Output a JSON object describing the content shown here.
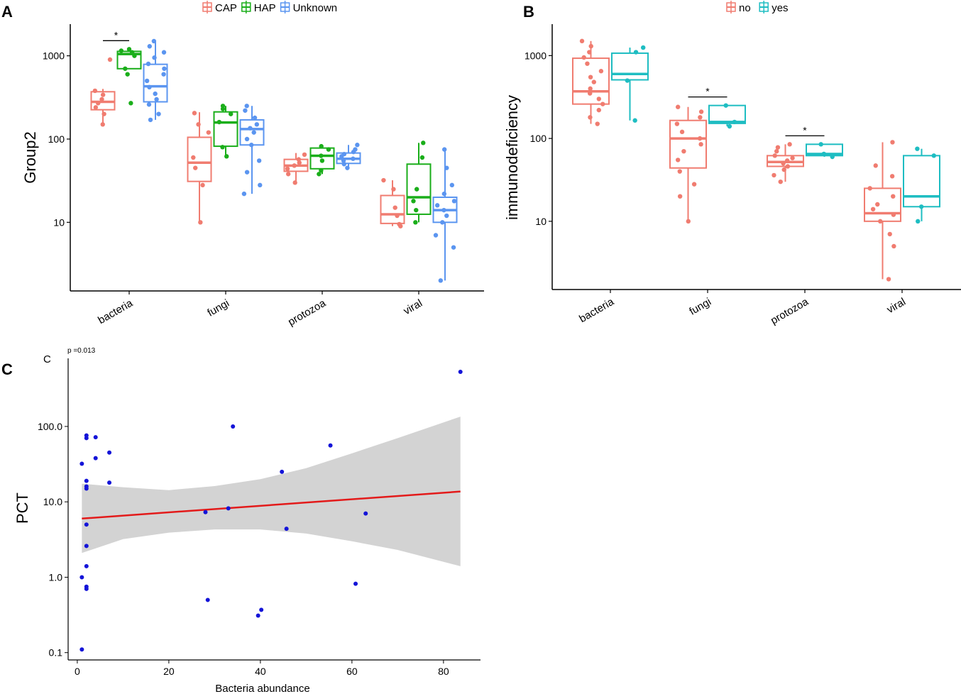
{
  "colors": {
    "CAP": "#F07C70",
    "HAP": "#1AAE1A",
    "Unknown": "#5B95F0",
    "no": "#F07C70",
    "yes": "#1EBDC2",
    "points_c": "#1414D8",
    "fit_line": "#E31A1A",
    "ci_band": "#D3D3D3",
    "axis": "#000000"
  },
  "chart_data": [
    {
      "id": "A",
      "type": "boxplot",
      "panel_label": "A",
      "ylabel": "Group2",
      "yscale": "log10",
      "ylim": [
        1.5,
        2400
      ],
      "yticks": [
        {
          "value": 10,
          "label": "10"
        },
        {
          "value": 100,
          "label": "100"
        },
        {
          "value": 1000,
          "label": "1000"
        }
      ],
      "categories": [
        "bacteria",
        "fungi",
        "protozoa",
        "viral"
      ],
      "legend": [
        {
          "key": "CAP",
          "label": "CAP"
        },
        {
          "key": "HAP",
          "label": "HAP"
        },
        {
          "key": "Unknown",
          "label": "Unknown"
        }
      ],
      "series": [
        {
          "name": "CAP",
          "boxes": [
            {
              "min": 150,
              "q1": 225,
              "median": 280,
              "q3": 370,
              "max": 400,
              "points": [
                150,
                200,
                240,
                270,
                300,
                340,
                380,
                900
              ]
            },
            {
              "min": 10,
              "q1": 31,
              "median": 52,
              "q3": 105,
              "max": 210,
              "points": [
                10,
                28,
                45,
                60,
                120,
                150,
                205
              ]
            },
            {
              "min": 30,
              "q1": 41,
              "median": 48,
              "q3": 57,
              "max": 68,
              "points": [
                30,
                38,
                44,
                48,
                52,
                57,
                65
              ]
            },
            {
              "min": 9,
              "q1": 9.7,
              "median": 12.5,
              "q3": 21,
              "max": 32,
              "points": [
                9,
                9.5,
                12,
                15,
                25,
                32
              ]
            }
          ]
        },
        {
          "name": "HAP",
          "boxes": [
            {
              "min": 700,
              "q1": 700,
              "median": 1050,
              "q3": 1130,
              "max": 1200,
              "points": [
                270,
                600,
                700,
                1000,
                1100,
                1150,
                1200
              ]
            },
            {
              "min": 62,
              "q1": 82,
              "median": 158,
              "q3": 212,
              "max": 250,
              "points": [
                62,
                80,
                160,
                200,
                230,
                250
              ]
            },
            {
              "min": 38,
              "q1": 44,
              "median": 63,
              "q3": 78,
              "max": 82,
              "points": [
                38,
                42,
                55,
                63,
                75,
                82
              ]
            },
            {
              "min": 10,
              "q1": 12.5,
              "median": 20,
              "q3": 50,
              "max": 90,
              "points": [
                10,
                14,
                18,
                25,
                60,
                90
              ]
            }
          ]
        },
        {
          "name": "Unknown",
          "boxes": [
            {
              "min": 170,
              "q1": 280,
              "median": 430,
              "q3": 790,
              "max": 1500,
              "points": [
                170,
                200,
                260,
                300,
                350,
                420,
                500,
                600,
                700,
                800,
                950,
                1100,
                1300,
                1500
              ]
            },
            {
              "min": 22,
              "q1": 85,
              "median": 132,
              "q3": 170,
              "max": 250,
              "points": [
                22,
                28,
                40,
                55,
                85,
                100,
                120,
                135,
                150,
                180,
                220,
                250
              ]
            },
            {
              "min": 45,
              "q1": 51,
              "median": 58,
              "q3": 68,
              "max": 85,
              "points": [
                45,
                50,
                55,
                58,
                62,
                66,
                70,
                75,
                85
              ]
            },
            {
              "min": 2,
              "q1": 10,
              "median": 14,
              "q3": 20,
              "max": 75,
              "points": [
                2,
                5,
                7,
                10,
                12,
                14,
                16,
                18,
                22,
                28,
                45,
                75
              ]
            }
          ]
        }
      ],
      "annotations": [
        {
          "category": "bacteria",
          "pair": [
            "CAP",
            "HAP"
          ],
          "text": "*"
        }
      ]
    },
    {
      "id": "B",
      "type": "boxplot",
      "panel_label": "B",
      "ylabel": "immunodeficiency",
      "yscale": "log10",
      "ylim": [
        1.5,
        2400
      ],
      "yticks": [
        {
          "value": 10,
          "label": "10"
        },
        {
          "value": 100,
          "label": "100"
        },
        {
          "value": 1000,
          "label": "1000"
        }
      ],
      "categories": [
        "bacteria",
        "fungi",
        "protozoa",
        "viral"
      ],
      "legend": [
        {
          "key": "no",
          "label": "no"
        },
        {
          "key": "yes",
          "label": "yes"
        }
      ],
      "series": [
        {
          "name": "no",
          "boxes": [
            {
              "min": 150,
              "q1": 260,
              "median": 370,
              "q3": 930,
              "max": 1500,
              "points": [
                150,
                180,
                220,
                260,
                300,
                350,
                400,
                480,
                550,
                650,
                800,
                950,
                1100,
                1300,
                1500
              ]
            },
            {
              "min": 10,
              "q1": 44,
              "median": 100,
              "q3": 165,
              "max": 240,
              "points": [
                10,
                20,
                28,
                40,
                55,
                70,
                85,
                100,
                120,
                150,
                180,
                210,
                240
              ]
            },
            {
              "min": 30,
              "q1": 46,
              "median": 52,
              "q3": 62,
              "max": 85,
              "points": [
                30,
                36,
                42,
                46,
                50,
                54,
                58,
                62,
                70,
                78,
                85
              ]
            },
            {
              "min": 2,
              "q1": 10,
              "median": 12.5,
              "q3": 25,
              "max": 90,
              "points": [
                2,
                5,
                7,
                10,
                12,
                14,
                16,
                20,
                25,
                35,
                47,
                90
              ]
            }
          ]
        },
        {
          "name": "yes",
          "boxes": [
            {
              "min": 165,
              "q1": 510,
              "median": 600,
              "q3": 1070,
              "max": 1250,
              "points": [
                165,
                500,
                1100,
                1250
              ]
            },
            {
              "min": 140,
              "q1": 152,
              "median": 158,
              "q3": 250,
              "max": 250,
              "points": [
                140,
                158,
                250
              ]
            },
            {
              "min": 60,
              "q1": 62,
              "median": 65,
              "q3": 85,
              "max": 85,
              "points": [
                60,
                65,
                85
              ]
            },
            {
              "min": 10,
              "q1": 15,
              "median": 20,
              "q3": 62,
              "max": 75,
              "points": [
                10,
                15,
                62,
                75
              ]
            }
          ]
        }
      ],
      "annotations": [
        {
          "category": "fungi",
          "pair": [
            "no",
            "yes"
          ],
          "text": "*"
        },
        {
          "category": "protozoa",
          "pair": [
            "no",
            "yes"
          ],
          "text": "*"
        }
      ]
    },
    {
      "id": "C",
      "type": "scatter",
      "panel_label": "C",
      "subtitle": "p =0.013",
      "title_letter": "C",
      "xlabel": "Bacteria abundance",
      "ylabel": "PCT",
      "yscale": "log10",
      "xlim": [
        -2,
        87
      ],
      "ylim": [
        0.08,
        800
      ],
      "xticks": [
        {
          "value": 0,
          "label": "0"
        },
        {
          "value": 20,
          "label": "20"
        },
        {
          "value": 40,
          "label": "40"
        },
        {
          "value": 60,
          "label": "60"
        },
        {
          "value": 80,
          "label": "80"
        }
      ],
      "yticks": [
        {
          "value": 0.1,
          "label": "0.1"
        },
        {
          "value": 1,
          "label": "1.0"
        },
        {
          "value": 10,
          "label": "10.0"
        },
        {
          "value": 100,
          "label": "100.0"
        }
      ],
      "points": [
        {
          "x": 1,
          "y": 0.11
        },
        {
          "x": 1,
          "y": 1.0
        },
        {
          "x": 1,
          "y": 32
        },
        {
          "x": 2,
          "y": 0.7
        },
        {
          "x": 2,
          "y": 0.75
        },
        {
          "x": 2,
          "y": 1.4
        },
        {
          "x": 2,
          "y": 2.6
        },
        {
          "x": 2,
          "y": 5.0
        },
        {
          "x": 2,
          "y": 15
        },
        {
          "x": 2,
          "y": 16
        },
        {
          "x": 2,
          "y": 19
        },
        {
          "x": 2,
          "y": 70
        },
        {
          "x": 2,
          "y": 76
        },
        {
          "x": 4,
          "y": 38
        },
        {
          "x": 4,
          "y": 72
        },
        {
          "x": 7,
          "y": 18
        },
        {
          "x": 7,
          "y": 45
        },
        {
          "x": 28,
          "y": 7.3
        },
        {
          "x": 28.5,
          "y": 0.5
        },
        {
          "x": 33,
          "y": 8.2
        },
        {
          "x": 34,
          "y": 100
        },
        {
          "x": 39.5,
          "y": 0.31
        },
        {
          "x": 40.2,
          "y": 0.37
        },
        {
          "x": 44.7,
          "y": 25
        },
        {
          "x": 45.7,
          "y": 4.4
        },
        {
          "x": 55.3,
          "y": 56
        },
        {
          "x": 60.8,
          "y": 0.82
        },
        {
          "x": 63,
          "y": 7.0
        },
        {
          "x": 83.7,
          "y": 530
        }
      ],
      "fit": {
        "x": [
          1,
          83.7
        ],
        "y": [
          6.0,
          13.7
        ]
      },
      "ci_band": [
        {
          "x": 1,
          "lo": 2.1,
          "hi": 17.4
        },
        {
          "x": 10,
          "lo": 3.2,
          "hi": 15.6
        },
        {
          "x": 20,
          "lo": 3.9,
          "hi": 14.3
        },
        {
          "x": 30,
          "lo": 4.3,
          "hi": 16.2
        },
        {
          "x": 40,
          "lo": 4.3,
          "hi": 20
        },
        {
          "x": 50,
          "lo": 3.8,
          "hi": 28
        },
        {
          "x": 60,
          "lo": 3.0,
          "hi": 44
        },
        {
          "x": 70,
          "lo": 2.3,
          "hi": 70
        },
        {
          "x": 83.7,
          "lo": 1.4,
          "hi": 135
        }
      ]
    }
  ]
}
